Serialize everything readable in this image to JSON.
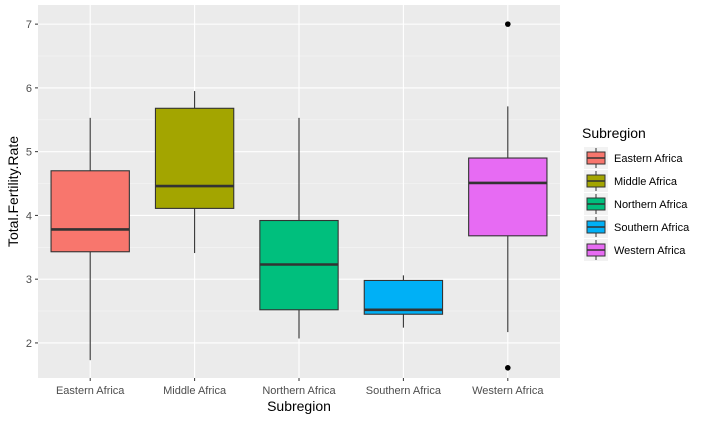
{
  "chart_data": {
    "type": "box",
    "xlabel": "Subregion",
    "ylabel": "Total.Fertility.Rate",
    "ylim": [
      1.45,
      7.3
    ],
    "yticks": [
      2,
      3,
      4,
      5,
      6,
      7
    ],
    "grid": true,
    "legend": {
      "title": "Subregion",
      "position": "right"
    },
    "categories": [
      "Eastern Africa",
      "Middle Africa",
      "Northern Africa",
      "Southern Africa",
      "Western Africa"
    ],
    "colors": [
      "#F8766D",
      "#A3A500",
      "#00BF7D",
      "#00B0F6",
      "#E76BF3"
    ],
    "boxes": [
      {
        "category": "Eastern Africa",
        "min": 1.73,
        "q1": 3.43,
        "median": 3.78,
        "q3": 4.7,
        "max": 5.53,
        "outliers": []
      },
      {
        "category": "Middle Africa",
        "min": 3.41,
        "q1": 4.11,
        "median": 4.46,
        "q3": 5.68,
        "max": 5.95,
        "outliers": []
      },
      {
        "category": "Northern Africa",
        "min": 2.07,
        "q1": 2.52,
        "median": 3.23,
        "q3": 3.92,
        "max": 5.53,
        "outliers": []
      },
      {
        "category": "Southern Africa",
        "min": 2.24,
        "q1": 2.45,
        "median": 2.52,
        "q3": 2.98,
        "max": 3.06,
        "outliers": []
      },
      {
        "category": "Western Africa",
        "min": 2.17,
        "q1": 3.68,
        "median": 4.51,
        "q3": 4.9,
        "max": 5.71,
        "outliers": [
          7.0,
          1.61
        ]
      }
    ]
  }
}
